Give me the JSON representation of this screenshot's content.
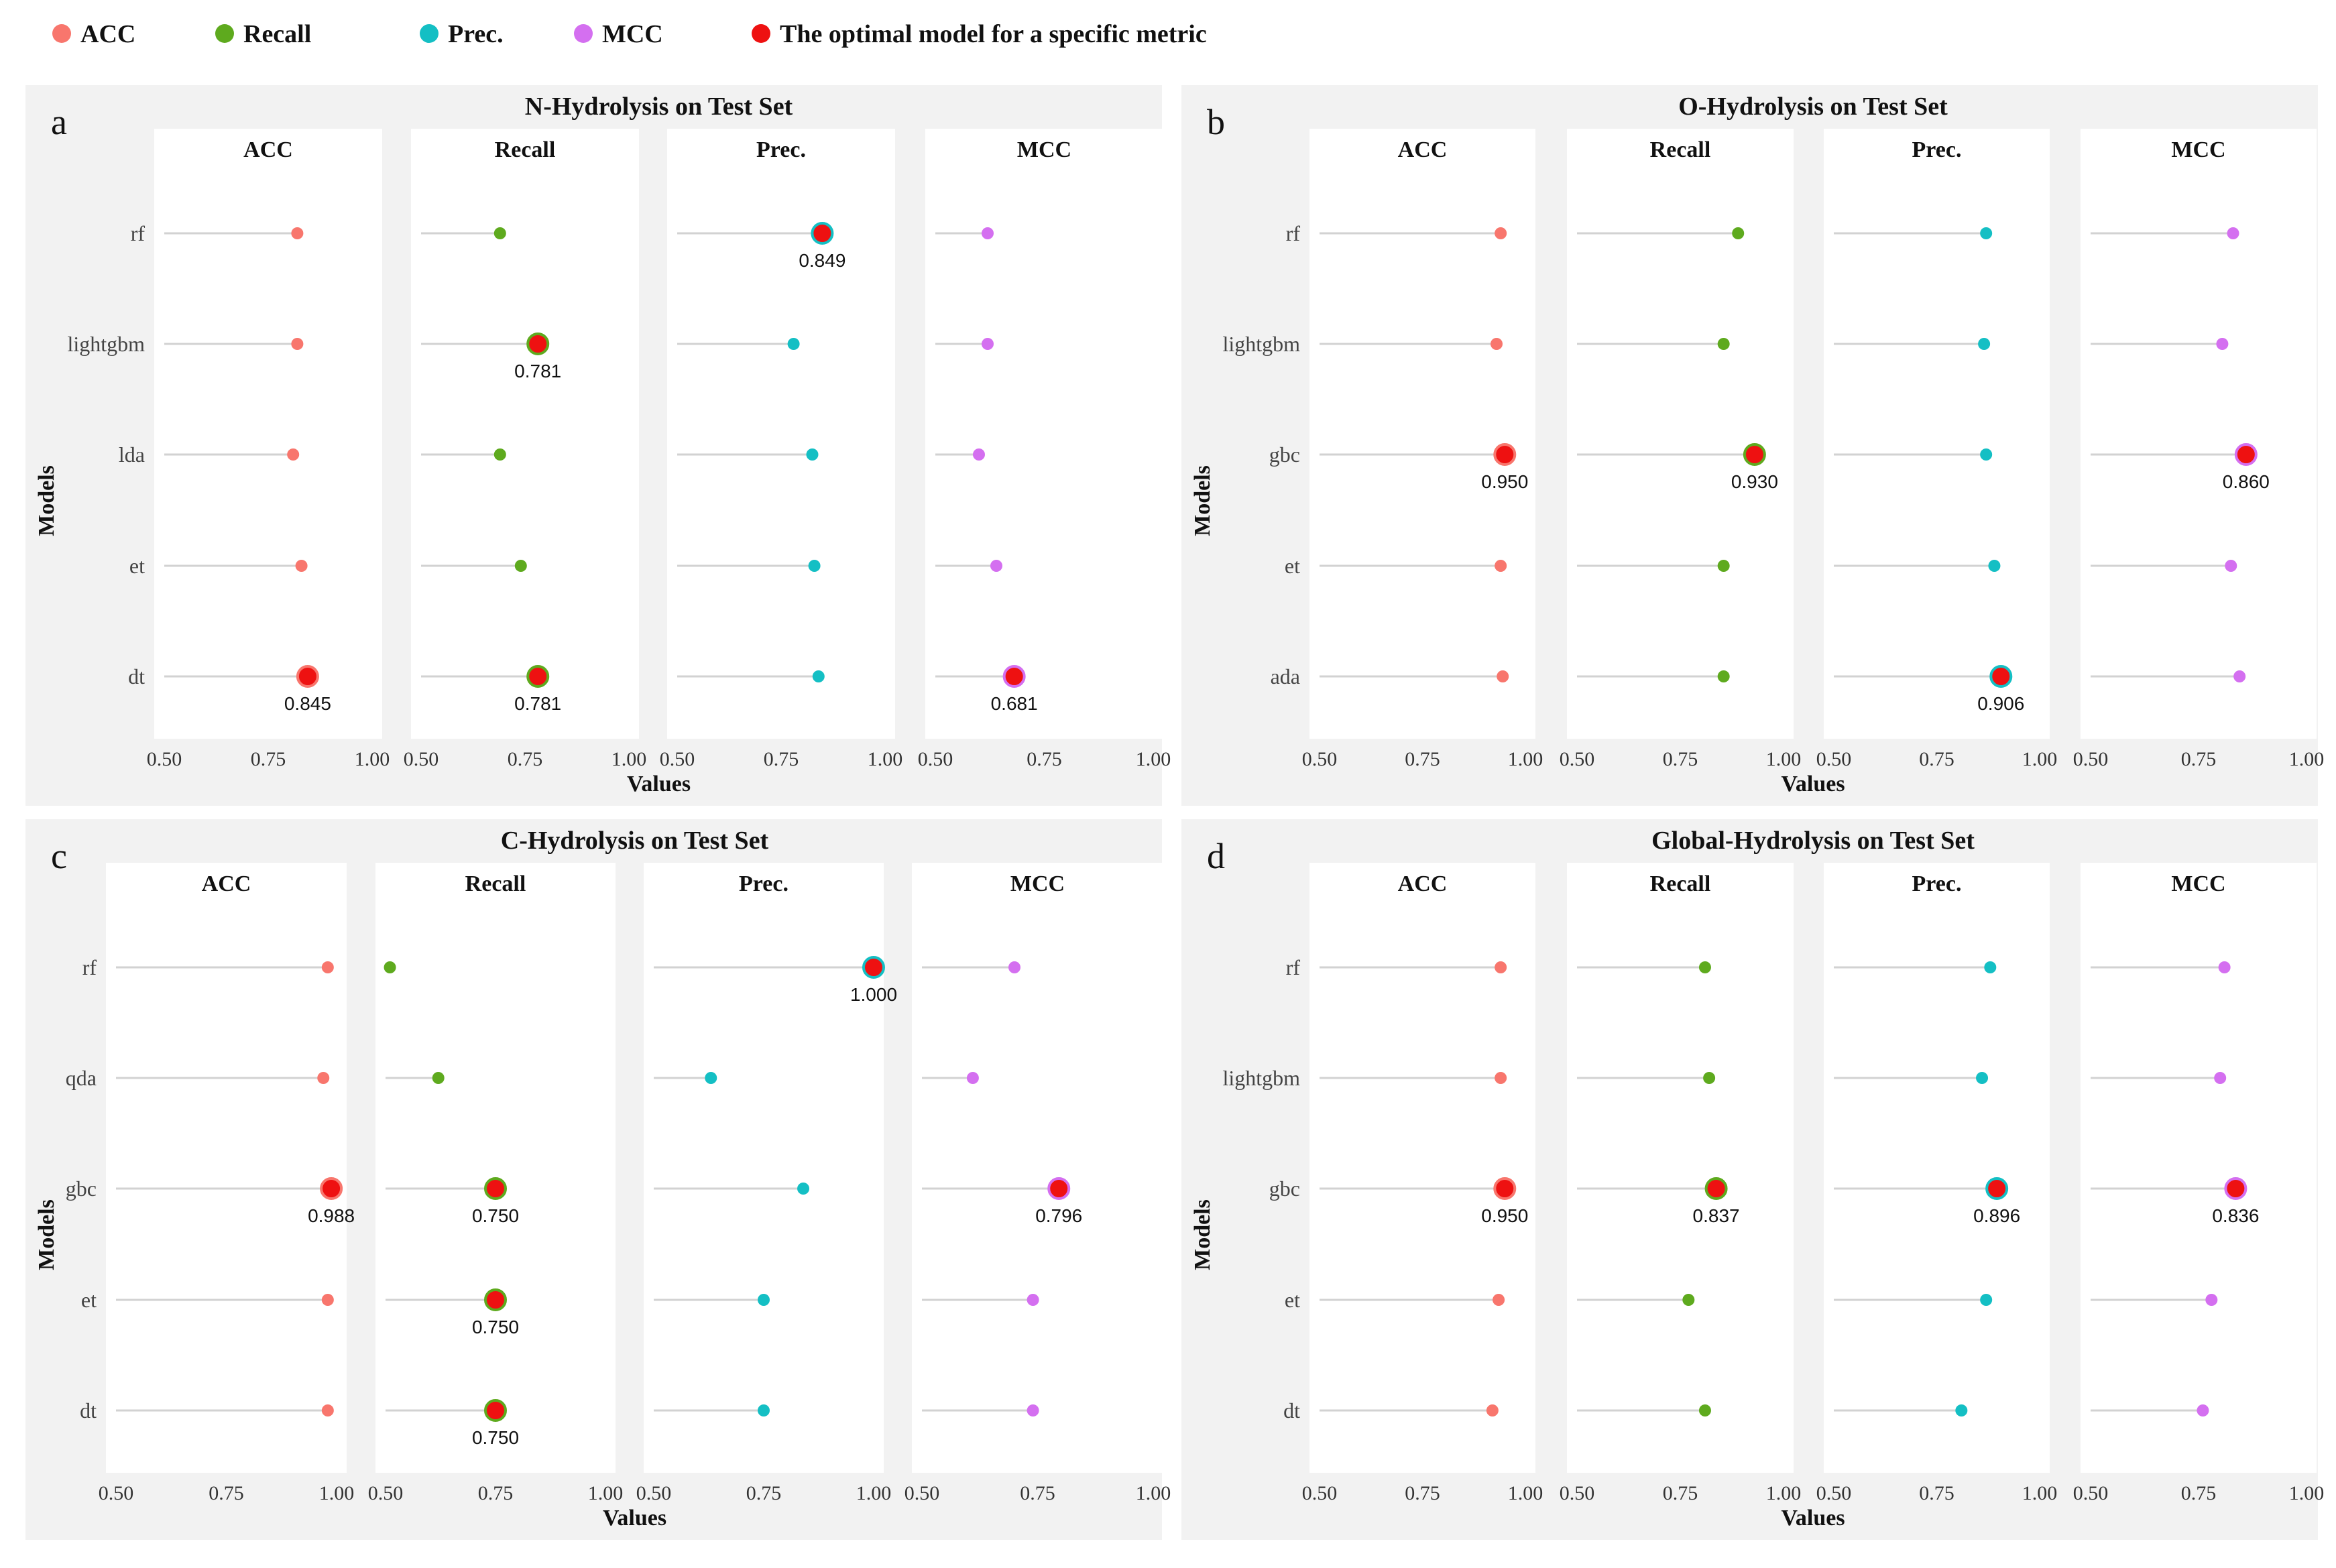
{
  "legend": [
    {
      "label": "ACC",
      "color": "#f8766d"
    },
    {
      "label": "Recall",
      "color": "#5eaa1e"
    },
    {
      "label": "Prec.",
      "color": "#14bfc4"
    },
    {
      "label": "MCC",
      "color": "#d46ff0"
    },
    {
      "label": "The optimal model for a specific metric",
      "color": "#ee1111"
    }
  ],
  "metric_colors": {
    "ACC": "#f8766d",
    "Recall": "#5eaa1e",
    "Prec.": "#14bfc4",
    "MCC": "#d46ff0"
  },
  "optimal_color": "#ee1111",
  "chart_data": [
    {
      "type": "scatter",
      "letter": "a",
      "title": "N-Hydrolysis on Test Set",
      "xlabel": "Values",
      "ylabel": "Models",
      "xlim": [
        0.5,
        1.0
      ],
      "ticks": [
        "0.50",
        "0.75",
        "1.00"
      ],
      "models": [
        "rf",
        "lightgbm",
        "lda",
        "et",
        "dt"
      ],
      "metrics": [
        "ACC",
        "Recall",
        "Prec.",
        "MCC"
      ],
      "values": {
        "ACC": [
          0.82,
          0.82,
          0.81,
          0.83,
          0.845
        ],
        "Recall": [
          0.69,
          0.781,
          0.69,
          0.74,
          0.781
        ],
        "Prec.": [
          0.849,
          0.78,
          0.825,
          0.83,
          0.84
        ],
        "MCC": [
          0.62,
          0.62,
          0.6,
          0.64,
          0.681
        ]
      },
      "optimal": [
        {
          "metric": "ACC",
          "model": "dt",
          "label": "0.845"
        },
        {
          "metric": "Recall",
          "model": "lightgbm",
          "label": "0.781"
        },
        {
          "metric": "Recall",
          "model": "dt",
          "label": "0.781"
        },
        {
          "metric": "Prec.",
          "model": "rf",
          "label": "0.849"
        },
        {
          "metric": "MCC",
          "model": "dt",
          "label": "0.681"
        }
      ]
    },
    {
      "type": "scatter",
      "letter": "b",
      "title": "O-Hydrolysis on Test Set",
      "xlabel": "Values",
      "ylabel": "Models",
      "xlim": [
        0.5,
        1.0
      ],
      "ticks": [
        "0.50",
        "0.75",
        "1.00"
      ],
      "models": [
        "rf",
        "lightgbm",
        "gbc",
        "et",
        "ada"
      ],
      "metrics": [
        "ACC",
        "Recall",
        "Prec.",
        "MCC"
      ],
      "values": {
        "ACC": [
          0.94,
          0.93,
          0.95,
          0.94,
          0.945
        ],
        "Recall": [
          0.89,
          0.855,
          0.93,
          0.855,
          0.855
        ],
        "Prec.": [
          0.87,
          0.865,
          0.87,
          0.89,
          0.906
        ],
        "MCC": [
          0.83,
          0.805,
          0.86,
          0.825,
          0.845
        ]
      },
      "optimal": [
        {
          "metric": "ACC",
          "model": "gbc",
          "label": "0.950"
        },
        {
          "metric": "Recall",
          "model": "gbc",
          "label": "0.930"
        },
        {
          "metric": "Prec.",
          "model": "ada",
          "label": "0.906"
        },
        {
          "metric": "MCC",
          "model": "gbc",
          "label": "0.860"
        }
      ]
    },
    {
      "type": "scatter",
      "letter": "c",
      "title": "C-Hydrolysis on Test Set",
      "xlabel": "Values",
      "ylabel": "Models",
      "xlim": [
        0.5,
        1.0
      ],
      "ticks": [
        "0.50",
        "0.75",
        "1.00"
      ],
      "models": [
        "rf",
        "qda",
        "gbc",
        "et",
        "dt"
      ],
      "metrics": [
        "ACC",
        "Recall",
        "Prec.",
        "MCC"
      ],
      "values": {
        "ACC": [
          0.98,
          0.97,
          0.988,
          0.98,
          0.98
        ],
        "Recall": [
          0.51,
          0.62,
          0.75,
          0.75,
          0.75
        ],
        "Prec.": [
          1.0,
          0.63,
          0.84,
          0.75,
          0.75
        ],
        "MCC": [
          0.7,
          0.61,
          0.796,
          0.74,
          0.74
        ]
      },
      "optimal": [
        {
          "metric": "ACC",
          "model": "gbc",
          "label": "0.988"
        },
        {
          "metric": "Recall",
          "model": "gbc",
          "label": "0.750"
        },
        {
          "metric": "Recall",
          "model": "et",
          "label": "0.750"
        },
        {
          "metric": "Recall",
          "model": "dt",
          "label": "0.750"
        },
        {
          "metric": "Prec.",
          "model": "rf",
          "label": "1.000"
        },
        {
          "metric": "MCC",
          "model": "gbc",
          "label": "0.796"
        }
      ]
    },
    {
      "type": "scatter",
      "letter": "d",
      "title": "Global-Hydrolysis on Test Set",
      "xlabel": "Values",
      "ylabel": "Models",
      "xlim": [
        0.5,
        1.0
      ],
      "ticks": [
        "0.50",
        "0.75",
        "1.00"
      ],
      "models": [
        "rf",
        "lightgbm",
        "gbc",
        "et",
        "dt"
      ],
      "metrics": [
        "ACC",
        "Recall",
        "Prec.",
        "MCC"
      ],
      "values": {
        "ACC": [
          0.94,
          0.94,
          0.95,
          0.935,
          0.92
        ],
        "Recall": [
          0.81,
          0.82,
          0.837,
          0.77,
          0.81
        ],
        "Prec.": [
          0.88,
          0.86,
          0.896,
          0.87,
          0.81
        ],
        "MCC": [
          0.81,
          0.8,
          0.836,
          0.78,
          0.76
        ]
      },
      "optimal": [
        {
          "metric": "ACC",
          "model": "gbc",
          "label": "0.950"
        },
        {
          "metric": "Recall",
          "model": "gbc",
          "label": "0.837"
        },
        {
          "metric": "Prec.",
          "model": "gbc",
          "label": "0.896"
        },
        {
          "metric": "MCC",
          "model": "gbc",
          "label": "0.836"
        }
      ]
    }
  ]
}
